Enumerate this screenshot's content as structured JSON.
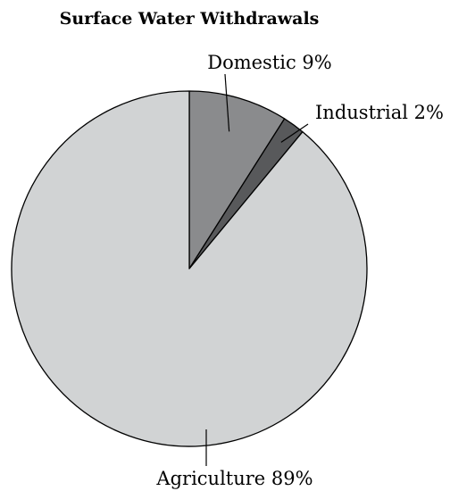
{
  "chart_data": {
    "type": "pie",
    "title": "Surface Water Withdrawals",
    "slices": [
      {
        "name": "Domestic",
        "value": 9,
        "label": "Domestic 9%",
        "color": "#8a8b8d"
      },
      {
        "name": "Industrial",
        "value": 2,
        "label": "Industrial 2%",
        "color": "#58595b"
      },
      {
        "name": "Agriculture",
        "value": 89,
        "label": "Agriculture 89%",
        "color": "#d1d3d4"
      }
    ],
    "legend": "none"
  }
}
